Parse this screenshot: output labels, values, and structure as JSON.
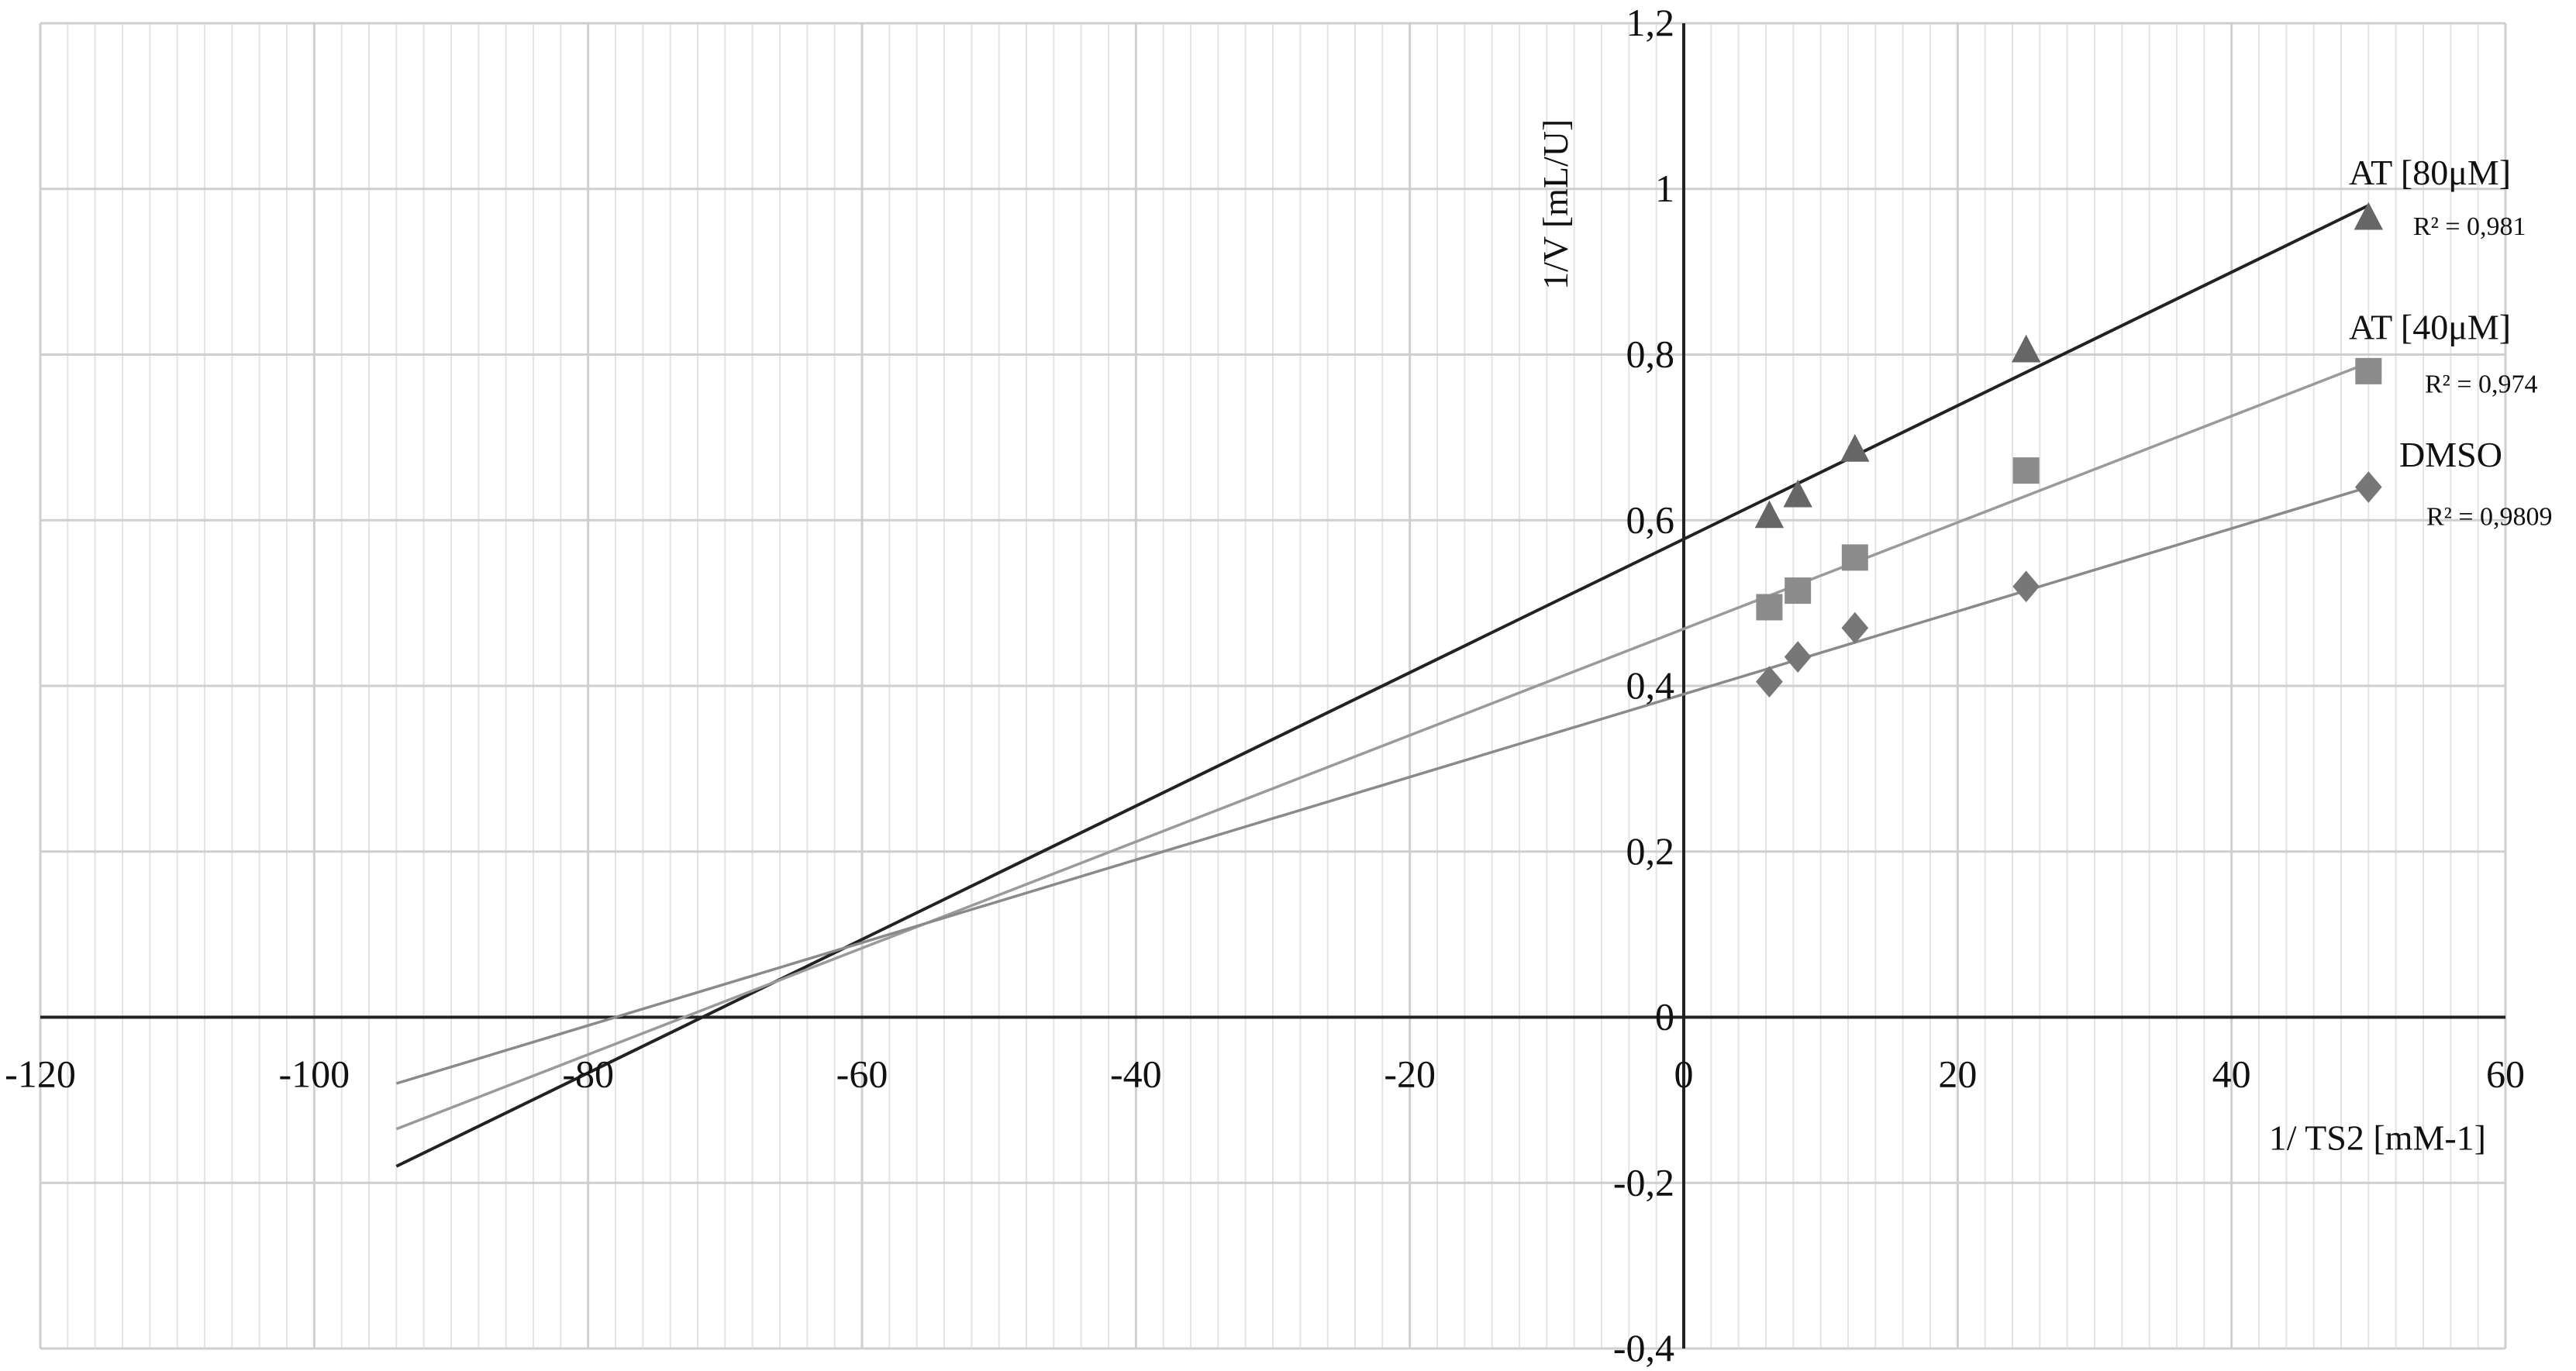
{
  "chart_data": {
    "type": "scatter",
    "xlabel": "1/ TS2 [mM-1]",
    "ylabel": "1/V [mL/U]",
    "xlim": [
      -120,
      60
    ],
    "ylim": [
      -0.4,
      1.2
    ],
    "x_ticks": [
      -120,
      -100,
      -80,
      -60,
      -40,
      -20,
      0,
      20,
      40,
      60
    ],
    "x_tick_labels": [
      "-120",
      "-100",
      "-80",
      "-60",
      "-40",
      "-20",
      "0",
      "20",
      "40",
      "60"
    ],
    "y_ticks": [
      -0.4,
      -0.2,
      0,
      0.2,
      0.4,
      0.6,
      0.8,
      1,
      1.2
    ],
    "y_tick_labels": [
      "-0,4",
      "-0,2",
      "0",
      "0,2",
      "0,4",
      "0,6",
      "0,8",
      "1",
      "1,2"
    ],
    "grid": true,
    "minor_x_step": 2,
    "series": [
      {
        "name": "AT [80μM]",
        "r2_label": "R² = 0,981",
        "marker": "triangle",
        "color": "#666666",
        "line_color": "#222222",
        "x": [
          6.25,
          8.33,
          12.5,
          25,
          50
        ],
        "y": [
          0.605,
          0.63,
          0.685,
          0.805,
          0.965
        ],
        "trendline": {
          "x": [
            -94,
            50
          ],
          "y": [
            -0.18,
            0.98
          ]
        }
      },
      {
        "name": "AT [40μM]",
        "r2_label": "R² = 0,974",
        "marker": "square",
        "color": "#8c8c8c",
        "line_color": "#9a9a9a",
        "x": [
          6.25,
          8.33,
          12.5,
          25,
          50
        ],
        "y": [
          0.495,
          0.515,
          0.555,
          0.66,
          0.78
        ],
        "trendline": {
          "x": [
            -94,
            50
          ],
          "y": [
            -0.135,
            0.79
          ]
        }
      },
      {
        "name": "DMSO",
        "r2_label": "R² = 0,9809",
        "marker": "diamond",
        "color": "#777777",
        "line_color": "#8a8a8a",
        "x": [
          6.25,
          8.33,
          12.5,
          25,
          50
        ],
        "y": [
          0.405,
          0.435,
          0.47,
          0.52,
          0.64
        ],
        "trendline": {
          "x": [
            -94,
            50
          ],
          "y": [
            -0.08,
            0.64
          ]
        }
      }
    ]
  }
}
